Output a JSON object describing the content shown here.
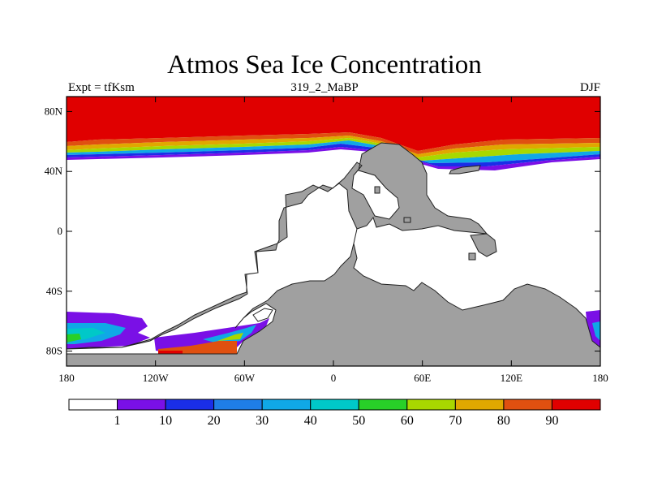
{
  "title": "Atmos Sea Ice Concentration",
  "subtitle_left": "Expt = tfKsm",
  "subtitle_center": "319_2_MaBP",
  "subtitle_right": "DJF",
  "map": {
    "lon_range": [
      -180,
      180
    ],
    "lat_range": [
      -90,
      90
    ],
    "lat_ticks": [
      {
        "value": 80,
        "label": "80N"
      },
      {
        "value": 40,
        "label": "40N"
      },
      {
        "value": 0,
        "label": "0"
      },
      {
        "value": -40,
        "label": "40S"
      },
      {
        "value": -80,
        "label": "80S"
      }
    ],
    "lon_ticks": [
      {
        "value": -180,
        "label": "180"
      },
      {
        "value": -120,
        "label": "120W"
      },
      {
        "value": -60,
        "label": "60W"
      },
      {
        "value": 0,
        "label": "0"
      },
      {
        "value": 60,
        "label": "60E"
      },
      {
        "value": 120,
        "label": "120E"
      },
      {
        "value": 180,
        "label": "180"
      }
    ],
    "land_color": "#a0a0a0"
  },
  "colorbar": {
    "labels": [
      "1",
      "10",
      "20",
      "30",
      "40",
      "50",
      "60",
      "70",
      "80",
      "90"
    ],
    "colors": [
      "#ffffff",
      "#7a10e6",
      "#1a2ee8",
      "#1f7ee6",
      "#10a8e6",
      "#00c8c8",
      "#28d028",
      "#a8d800",
      "#e0a800",
      "#e05010",
      "#e00000"
    ]
  }
}
